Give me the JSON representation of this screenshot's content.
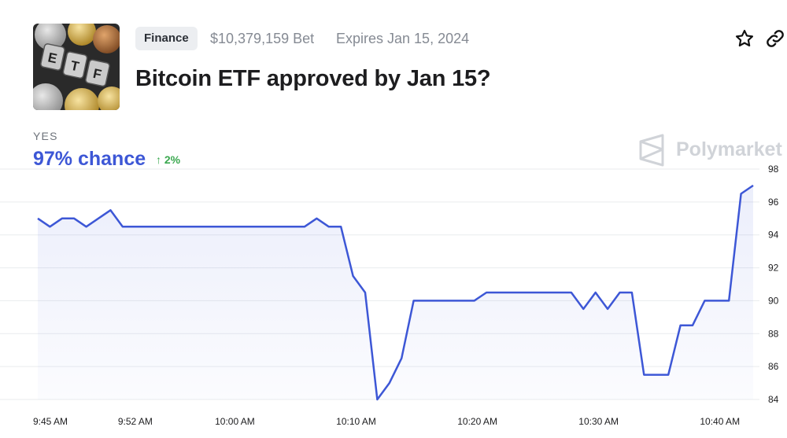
{
  "market": {
    "category": "Finance",
    "volume": "$10,379,159 Bet",
    "expires": "Expires Jan 15, 2024",
    "title": "Bitcoin ETF approved by Jan 15?",
    "thumbnail_text": "ETF"
  },
  "actions": {
    "favorite_icon": "star-icon",
    "share_icon": "link-icon"
  },
  "outcome": {
    "label": "YES",
    "chance": "97% chance",
    "change": "↑ 2%"
  },
  "watermark": "Polymarket",
  "colors": {
    "accent": "#3d57d6",
    "up": "#3aa84f",
    "tag_bg": "#eceef1"
  },
  "chart_data": {
    "type": "line",
    "title": "",
    "xlabel": "",
    "ylabel": "",
    "ylim": [
      84,
      98
    ],
    "y_ticks": [
      98,
      96,
      94,
      92,
      90,
      88,
      86,
      84
    ],
    "x_ticks": [
      {
        "label": "9:45 AM",
        "t": 0
      },
      {
        "label": "9:52 AM",
        "t": 7
      },
      {
        "label": "10:00 AM",
        "t": 15
      },
      {
        "label": "10:10 AM",
        "t": 25
      },
      {
        "label": "10:20 AM",
        "t": 35
      },
      {
        "label": "10:30 AM",
        "t": 45
      },
      {
        "label": "10:40 AM",
        "t": 55
      }
    ],
    "grid": true,
    "series": [
      {
        "points": [
          [
            0,
            95.0
          ],
          [
            1,
            94.5
          ],
          [
            2,
            95.0
          ],
          [
            3,
            95.0
          ],
          [
            4,
            94.5
          ],
          [
            6,
            95.5
          ],
          [
            7,
            94.5
          ],
          [
            15,
            94.5
          ],
          [
            22,
            94.5
          ],
          [
            23,
            95.0
          ],
          [
            24,
            94.5
          ],
          [
            25,
            94.5
          ],
          [
            26,
            91.5
          ],
          [
            27,
            90.5
          ],
          [
            28,
            84.0
          ],
          [
            29,
            85.0
          ],
          [
            30,
            86.5
          ],
          [
            31,
            90.0
          ],
          [
            36,
            90.0
          ],
          [
            37,
            90.5
          ],
          [
            44,
            90.5
          ],
          [
            45,
            89.5
          ],
          [
            46,
            90.5
          ],
          [
            47,
            89.5
          ],
          [
            48,
            90.5
          ],
          [
            49,
            90.5
          ],
          [
            50,
            85.5
          ],
          [
            52,
            85.5
          ],
          [
            53,
            88.5
          ],
          [
            54,
            88.5
          ],
          [
            55,
            90.0
          ],
          [
            57,
            90.0
          ],
          [
            58,
            96.5
          ],
          [
            59,
            97.0
          ]
        ]
      }
    ]
  }
}
